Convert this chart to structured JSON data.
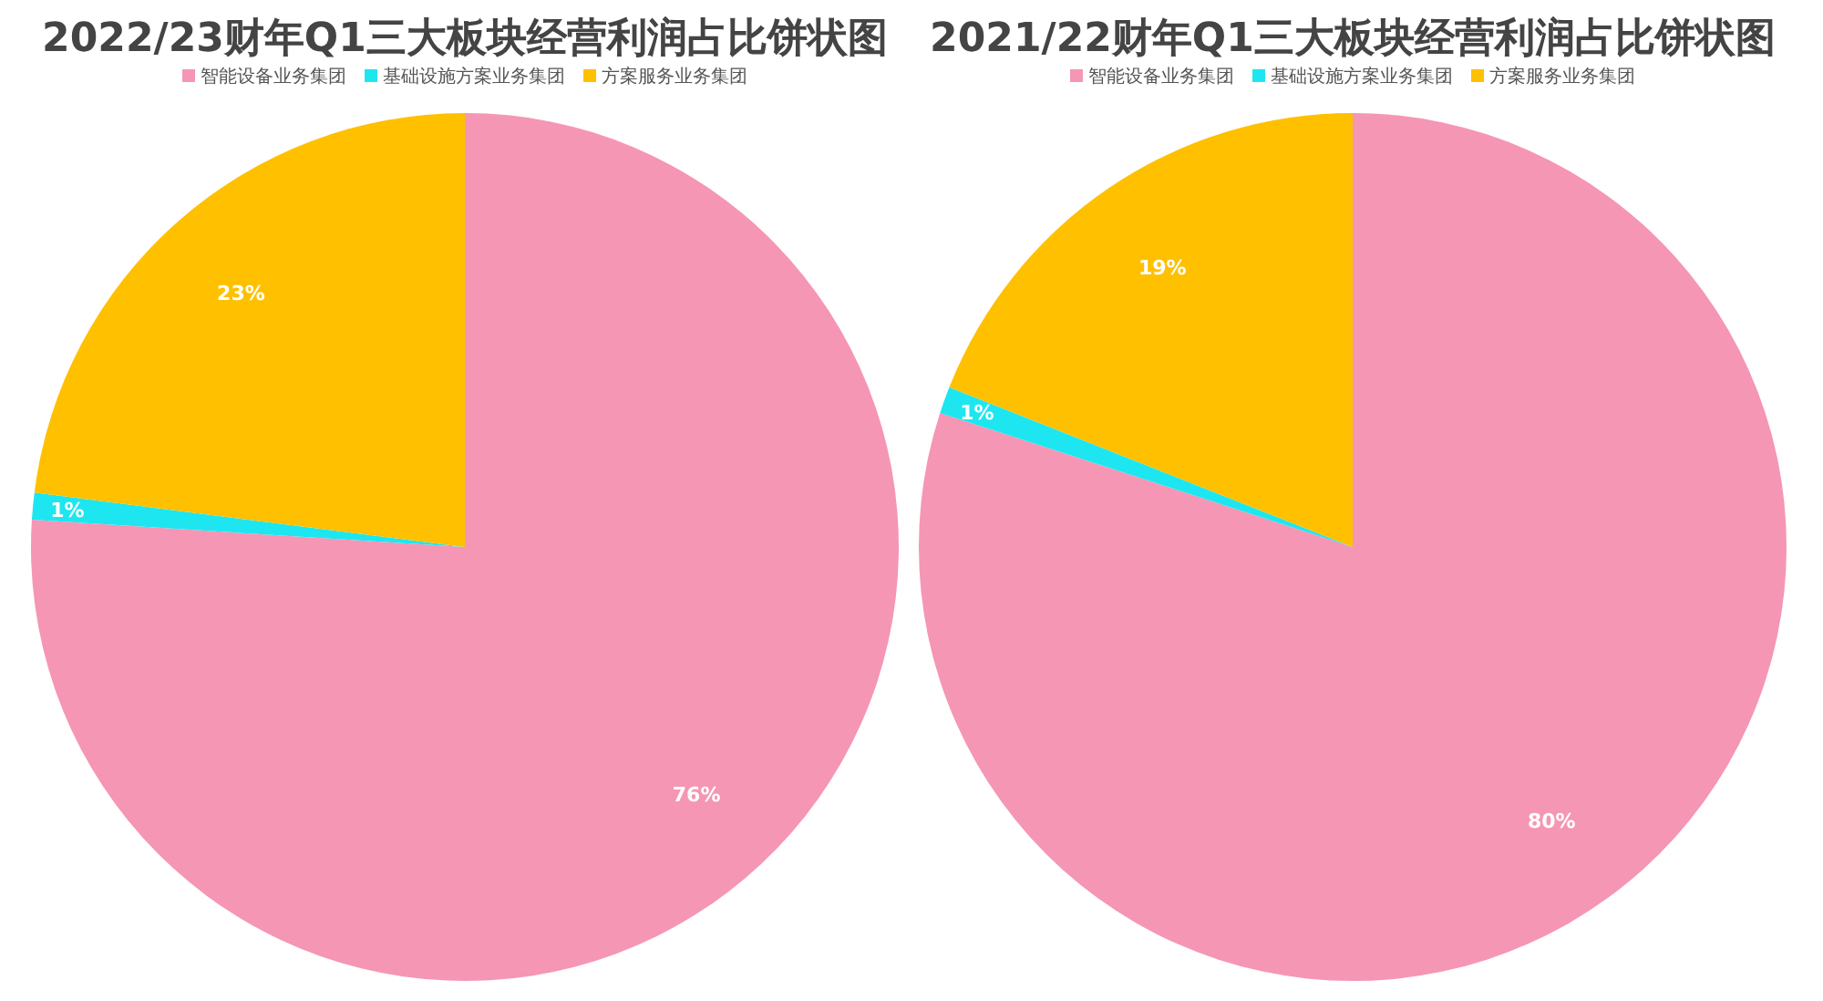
{
  "chart_data": [
    {
      "type": "pie",
      "title": "2022/23财年Q1三大板块经营利润占比饼状图",
      "categories": [
        "智能设备业务集团",
        "基础设施方案业务集团",
        "方案服务业务集团"
      ],
      "values": [
        76,
        1,
        23
      ],
      "value_labels": [
        "76%",
        "1%",
        "23%"
      ],
      "colors": [
        "#f596b4",
        "#1ee6f0",
        "#ffc000"
      ],
      "legend": "top"
    },
    {
      "type": "pie",
      "title": "2021/22财年Q1三大板块经营利润占比饼状图",
      "categories": [
        "智能设备业务集团",
        "基础设施方案业务集团",
        "方案服务业务集团"
      ],
      "values": [
        80,
        1,
        19
      ],
      "value_labels": [
        "80%",
        "1%",
        "19%"
      ],
      "colors": [
        "#f596b4",
        "#1ee6f0",
        "#ffc000"
      ],
      "legend": "top"
    }
  ]
}
